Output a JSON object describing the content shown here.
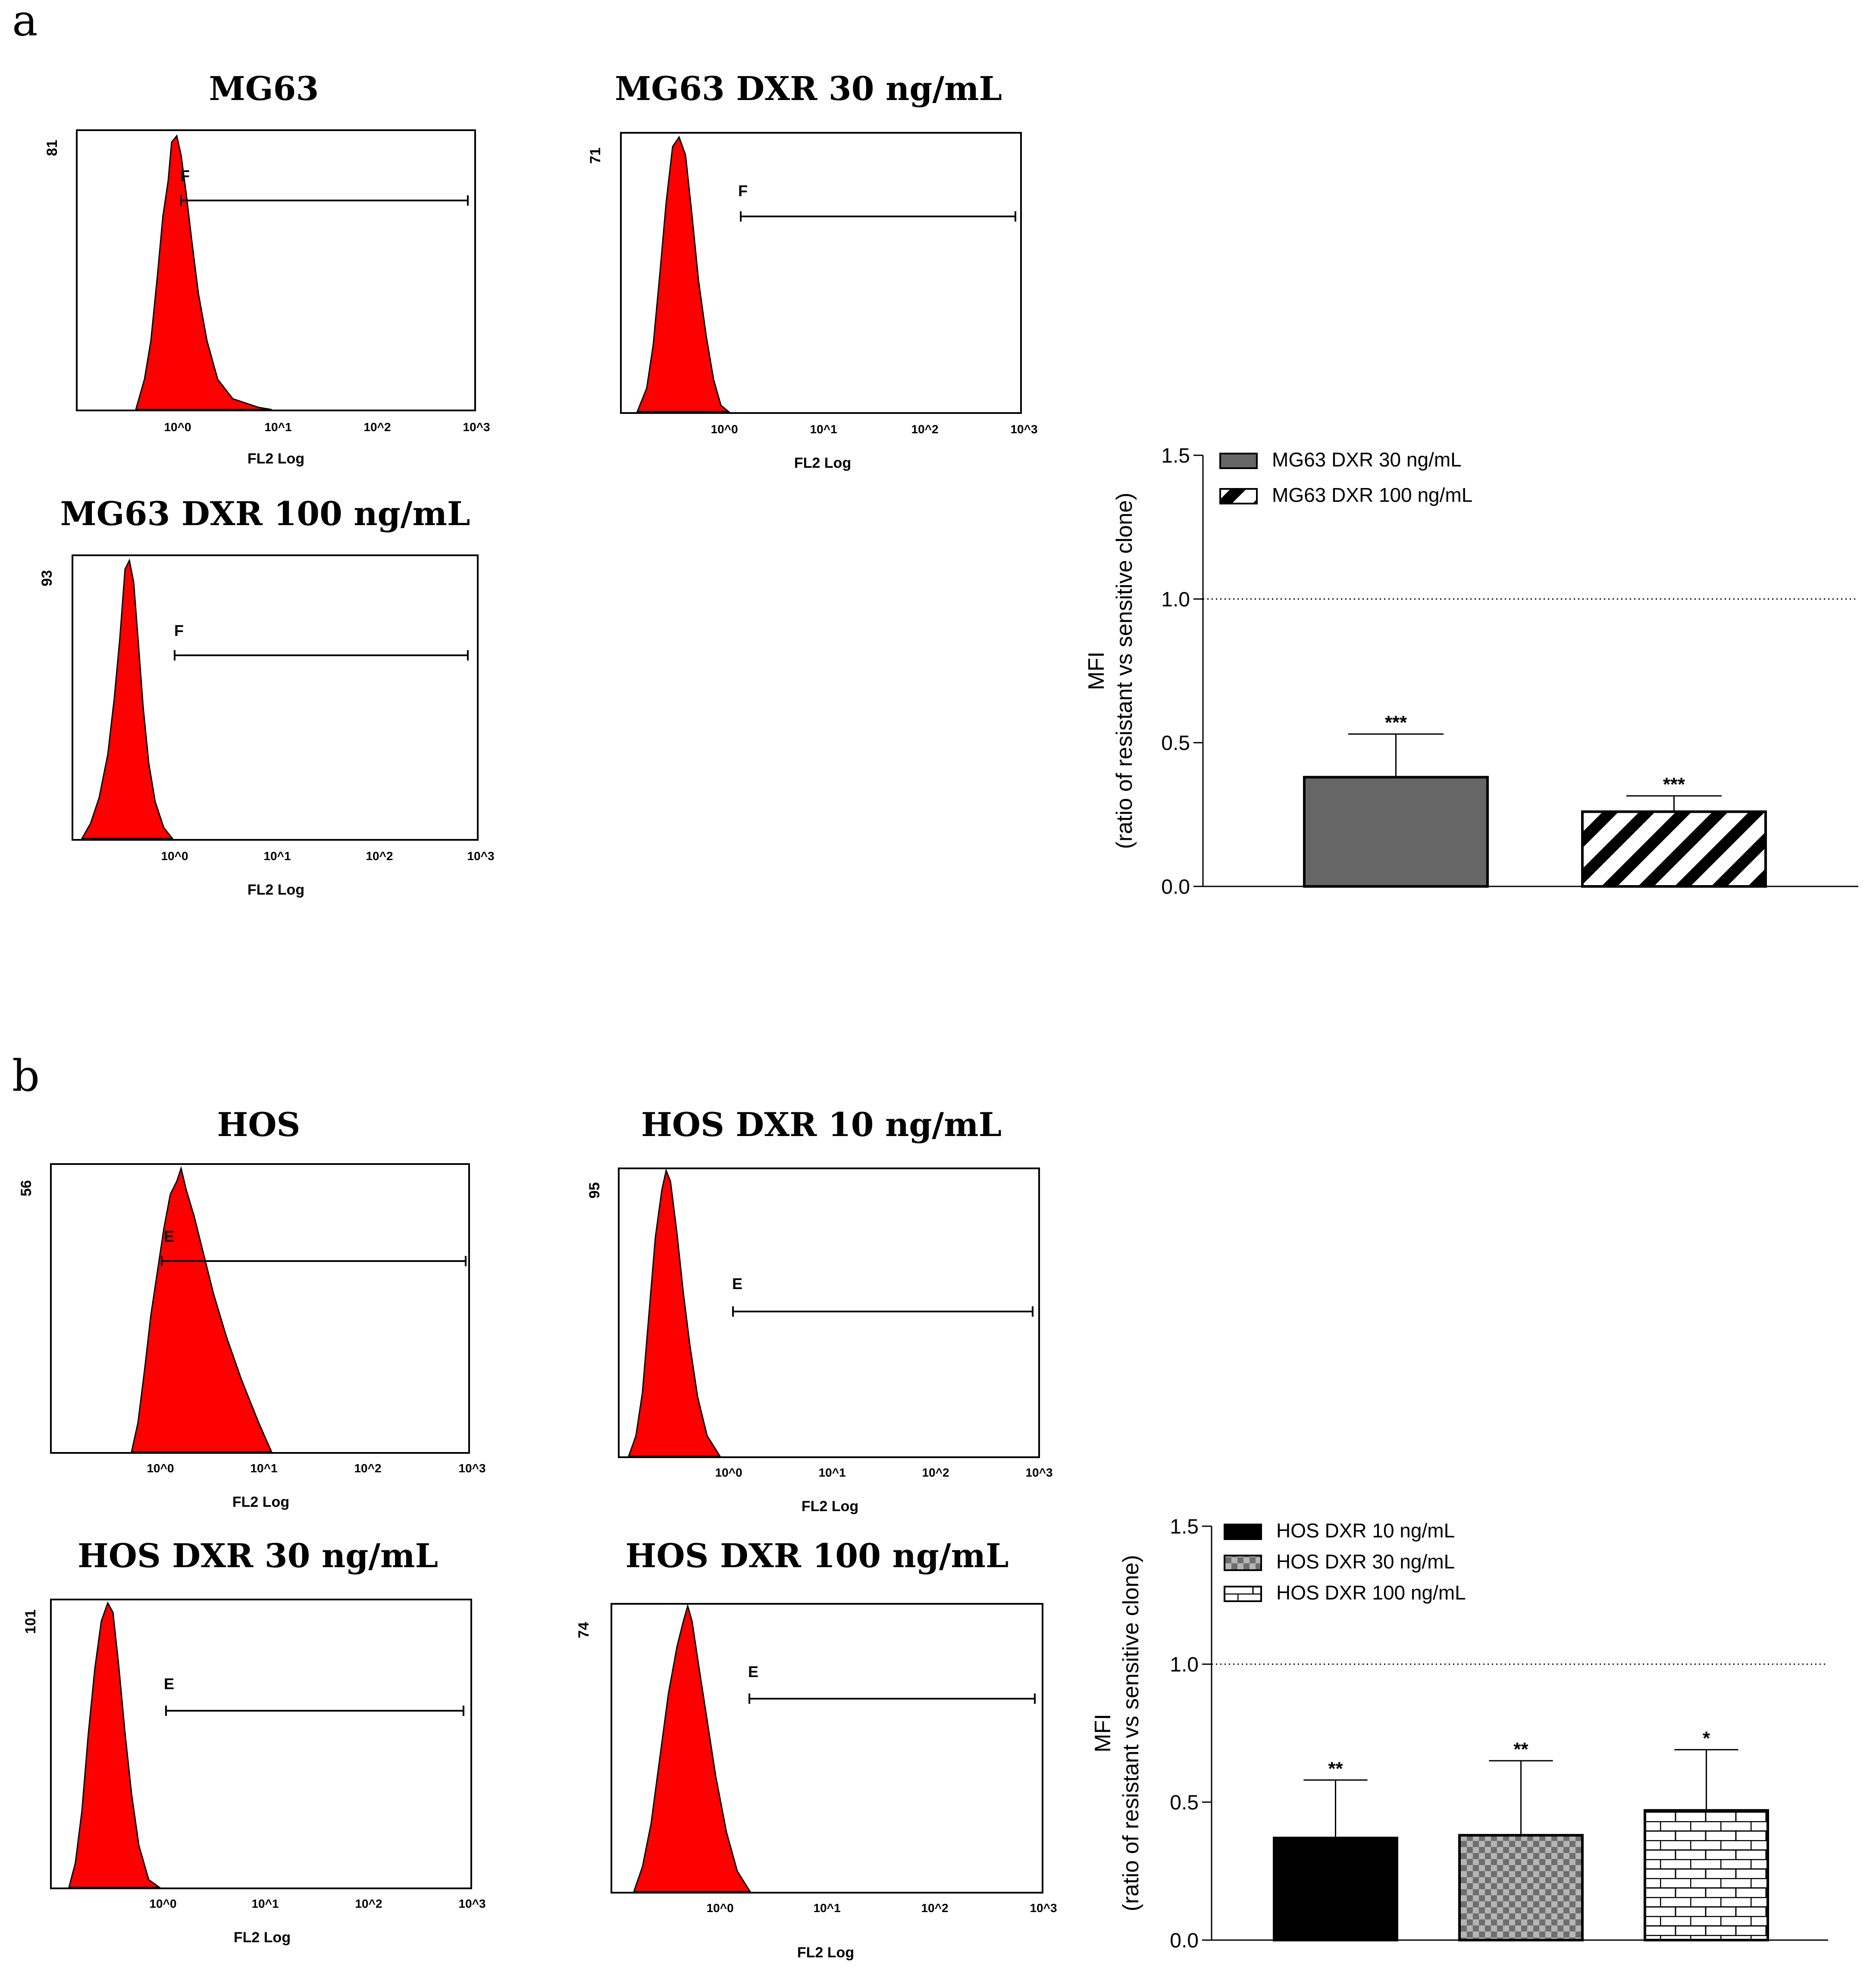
{
  "panels": {
    "a": {
      "label": "a",
      "histograms": [
        {
          "title": "MG63",
          "ymax_label": "81",
          "gate": "F",
          "xlabel": "FL2 Log",
          "ticks": [
            "10^0",
            "10^1",
            "10^2",
            "10^3"
          ]
        },
        {
          "title": "MG63 DXR 30 ng/mL",
          "ymax_label": "71",
          "gate": "F",
          "xlabel": "FL2 Log",
          "ticks": [
            "10^0",
            "10^1",
            "10^2",
            "10^3"
          ]
        },
        {
          "title": "MG63 DXR 100 ng/mL",
          "ymax_label": "93",
          "gate": "F",
          "xlabel": "FL2 Log",
          "ticks": [
            "10^0",
            "10^1",
            "10^2",
            "10^3"
          ]
        }
      ]
    },
    "b": {
      "label": "b",
      "histograms": [
        {
          "title": "HOS",
          "ymax_label": "56",
          "gate": "E",
          "xlabel": "FL2 Log",
          "ticks": [
            "10^0",
            "10^1",
            "10^2",
            "10^3"
          ]
        },
        {
          "title": "HOS DXR 10 ng/mL",
          "ymax_label": "95",
          "gate": "E",
          "xlabel": "FL2 Log",
          "ticks": [
            "10^0",
            "10^1",
            "10^2",
            "10^3"
          ]
        },
        {
          "title": "HOS DXR 30 ng/mL",
          "ymax_label": "101",
          "gate": "E",
          "xlabel": "FL2 Log",
          "ticks": [
            "10^0",
            "10^1",
            "10^2",
            "10^3"
          ]
        },
        {
          "title": "HOS DXR 100 ng/mL",
          "ymax_label": "74",
          "gate": "E",
          "xlabel": "FL2 Log",
          "ticks": [
            "10^0",
            "10^1",
            "10^2",
            "10^3"
          ]
        }
      ]
    }
  },
  "colors": {
    "histogram_fill": "#ff0000",
    "bar_gray": "#666666",
    "bar_black": "#000000"
  },
  "chart_data": [
    {
      "id": "mg63-mfi",
      "type": "bar",
      "ylabel_line1": "MFI",
      "ylabel_line2": "(ratio of resistant vs sensitive clone)",
      "ylim": [
        0,
        1.5
      ],
      "yticks": [
        "0.0",
        "0.5",
        "1.0",
        "1.5"
      ],
      "reference_line": 1.0,
      "series": [
        {
          "name": "MG63 DXR 30 ng/mL",
          "value": 0.38,
          "error": 0.15,
          "sig": "***",
          "pattern": "gray"
        },
        {
          "name": "MG63 DXR 100 ng/mL",
          "value": 0.26,
          "error": 0.055,
          "sig": "***",
          "pattern": "stripes"
        }
      ]
    },
    {
      "id": "hos-mfi",
      "type": "bar",
      "ylabel_line1": "MFI",
      "ylabel_line2": "(ratio of resistant vs sensitive clone)",
      "ylim": [
        0,
        1.5
      ],
      "yticks": [
        "0.0",
        "0.5",
        "1.0",
        "1.5"
      ],
      "reference_line": 1.0,
      "series": [
        {
          "name": "HOS DXR 10 ng/mL",
          "value": 0.37,
          "error": 0.21,
          "sig": "**",
          "pattern": "black"
        },
        {
          "name": "HOS DXR 30 ng/mL",
          "value": 0.38,
          "error": 0.27,
          "sig": "**",
          "pattern": "checker"
        },
        {
          "name": "HOS DXR 100 ng/mL",
          "value": 0.47,
          "error": 0.22,
          "sig": "*",
          "pattern": "brick"
        }
      ]
    }
  ]
}
